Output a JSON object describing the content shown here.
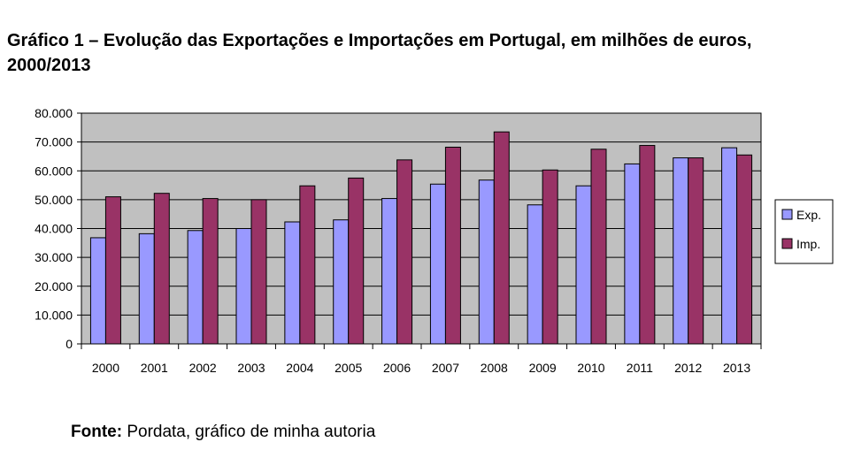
{
  "title": "Gráfico 1 – Evolução das Exportações e Importações em Portugal, em milhões de euros, 2000/2013",
  "source": {
    "label": "Fonte:",
    "text": " Pordata, gráfico de minha autoria"
  },
  "colors": {
    "plot_bg": "#C0C0C0",
    "exp": "#9999FF",
    "imp": "#993366"
  },
  "chart_data": {
    "type": "bar",
    "title": "Gráfico 1 – Evolução das Exportações e Importações em Portugal, em milhões de euros, 2000/2013",
    "categories": [
      "2000",
      "2001",
      "2002",
      "2003",
      "2004",
      "2005",
      "2006",
      "2007",
      "2008",
      "2009",
      "2010",
      "2011",
      "2012",
      "2013"
    ],
    "series": [
      {
        "name": "Exp.",
        "values": [
          36800,
          38200,
          39300,
          40000,
          42300,
          43000,
          50400,
          55400,
          56800,
          48200,
          54800,
          62400,
          64500,
          68000
        ]
      },
      {
        "name": "Imp.",
        "values": [
          51000,
          52200,
          50400,
          50000,
          54800,
          57500,
          63800,
          68200,
          73500,
          60300,
          67500,
          68800,
          64500,
          65500
        ]
      }
    ],
    "ylim": [
      0,
      80000
    ],
    "yticks": [
      "0",
      "10.000",
      "20.000",
      "30.000",
      "40.000",
      "50.000",
      "60.000",
      "70.000",
      "80.000"
    ],
    "xlabel": "",
    "ylabel": "",
    "grid": true,
    "legend": "right"
  }
}
